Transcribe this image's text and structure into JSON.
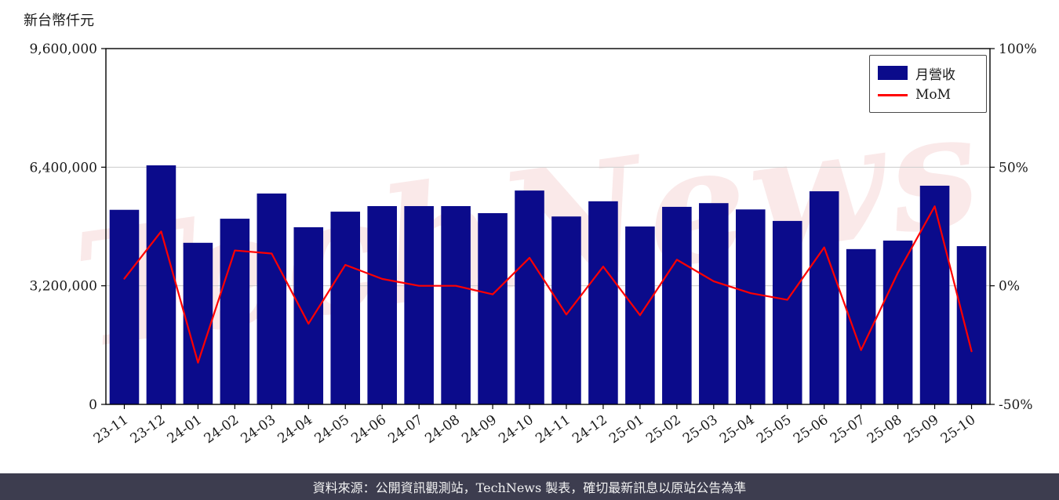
{
  "header": {
    "y_axis_title": "新台幣仟元"
  },
  "legend": {
    "bar_label": "月營收",
    "line_label": "MoM"
  },
  "watermark": {
    "text": "TechNews"
  },
  "footer": {
    "text": "資料來源：公開資訊觀測站，TechNews 製表，確切最新訊息以原站公告為準"
  },
  "colors": {
    "bar": "#0b0b8b",
    "line": "#ff0000",
    "grid": "#cccccc",
    "axis": "#000000",
    "tick_text": "#1a1a1a",
    "footer_bg": "#3d3d4f",
    "watermark": "rgba(217,70,70,0.12)"
  },
  "chart_data": {
    "type": "bar",
    "title": "",
    "xlabel": "",
    "ylabel": "新台幣仟元",
    "grid": "horizontal",
    "legend_position": "top-right",
    "categories": [
      "23-11",
      "23-12",
      "24-01",
      "24-02",
      "24-03",
      "24-04",
      "24-05",
      "24-06",
      "24-07",
      "24-08",
      "24-09",
      "24-10",
      "24-11",
      "24-12",
      "25-01",
      "25-02",
      "25-03",
      "25-04",
      "25-05",
      "25-06",
      "25-07",
      "25-08",
      "25-09",
      "25-10"
    ],
    "series": [
      {
        "name": "月營收",
        "type": "bar",
        "axis": "left",
        "values": [
          5250000,
          6450000,
          4360000,
          5010000,
          5690000,
          4780000,
          5200000,
          5350000,
          5350000,
          5350000,
          5160000,
          5770000,
          5070000,
          5480000,
          4800000,
          5330000,
          5430000,
          5260000,
          4950000,
          5750000,
          4190000,
          4420000,
          5900000,
          4270000
        ]
      },
      {
        "name": "MoM",
        "type": "line",
        "axis": "right",
        "values": [
          3.0,
          22.9,
          -32.4,
          14.9,
          13.6,
          -16.0,
          8.8,
          2.9,
          0.0,
          0.0,
          -3.6,
          11.8,
          -12.1,
          8.1,
          -12.4,
          11.0,
          1.9,
          -3.1,
          -5.9,
          16.2,
          -27.1,
          5.5,
          33.5,
          -27.6
        ]
      }
    ],
    "left_axis": {
      "range": [
        0,
        9600000
      ],
      "ticks": [
        0,
        3200000,
        6400000,
        9600000
      ],
      "tick_labels": [
        "0",
        "3,200,000",
        "6,400,000",
        "9,600,000"
      ]
    },
    "right_axis": {
      "range": [
        -50,
        100
      ],
      "ticks": [
        -50,
        0,
        50,
        100
      ],
      "tick_labels": [
        "-50%",
        "0%",
        "50%",
        "100%"
      ]
    }
  }
}
